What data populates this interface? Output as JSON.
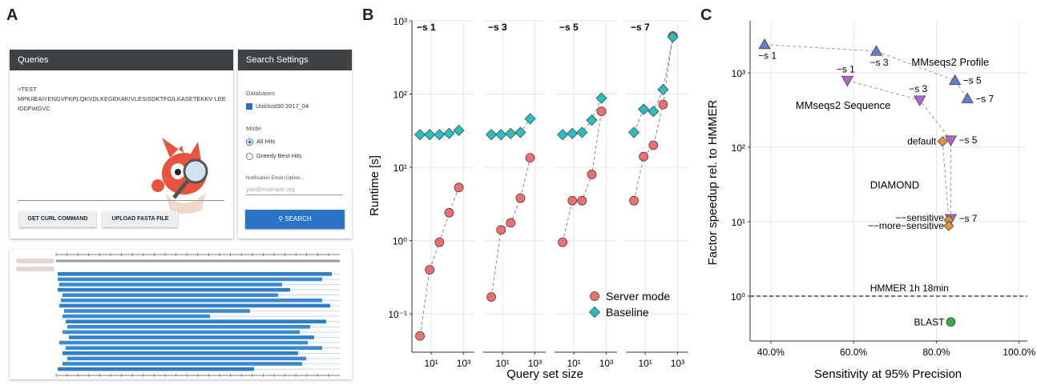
{
  "panels": {
    "a": "A",
    "b": "B",
    "c": "C"
  },
  "ui": {
    "queries_header": "Queries",
    "settings_header": "Search Settings",
    "query_name": ">TEST",
    "query_sequence": "MPKIIEAIYENGVFKPLQKVDLKEGEKAKIVLESISDKTFGILKASETEKKV LEEIDDFWGVC",
    "databases_label": "Databases",
    "database_option": "Uniclust30 2017_04",
    "mode_label": "Mode",
    "mode_options": [
      "All Hits",
      "Greedy Best Hits"
    ],
    "email_label": "Notification Email (Option...",
    "email_placeholder": "you@example.org",
    "curl_button": "GET CURL COMMAND",
    "upload_button": "UPLOAD FASTA FILE",
    "search_button": "SEARCH",
    "mascot": "mascot-illustration"
  },
  "chart_data": [
    {
      "type": "scatter",
      "panel": "B",
      "xlabel": "Query set size",
      "ylabel": "Runtime [s]",
      "yscale": "log",
      "xscale": "log",
      "ylim": [
        0.03,
        1000
      ],
      "ytick_labels": [
        "10⁻¹",
        "10⁰",
        "10¹",
        "10²",
        "10³"
      ],
      "xtick_labels": [
        "10¹",
        "10³"
      ],
      "legend": [
        "Server mode",
        "Baseline"
      ],
      "legend_position": "bottom-right",
      "colors": {
        "server": "#f06e6e",
        "baseline": "#27c0c0"
      },
      "facets": [
        {
          "label": "−s 1",
          "x": [
            2,
            8,
            32,
            128,
            512
          ],
          "server": [
            0.05,
            0.4,
            0.95,
            2.4,
            5.3
          ],
          "baseline": [
            28,
            28,
            28,
            29,
            32
          ]
        },
        {
          "label": "−s 3",
          "x": [
            2,
            8,
            32,
            128,
            512
          ],
          "server": [
            0.17,
            1.4,
            1.75,
            3.8,
            13.5
          ],
          "baseline": [
            28,
            28,
            29,
            30,
            46
          ]
        },
        {
          "label": "−s 5",
          "x": [
            2,
            8,
            32,
            128,
            512
          ],
          "server": [
            0.95,
            3.5,
            3.5,
            8,
            58
          ],
          "baseline": [
            28,
            29,
            30,
            44,
            88
          ]
        },
        {
          "label": "−s 7",
          "x": [
            2,
            8,
            32,
            128,
            512
          ],
          "server": [
            3.5,
            14,
            20,
            72,
            620
          ],
          "baseline": [
            30,
            62,
            58,
            115,
            600
          ]
        }
      ]
    },
    {
      "type": "scatter",
      "panel": "C",
      "xlabel": "Sensitivity at 95% Precision",
      "ylabel": "Factor speedup rel. to HMMER",
      "yscale": "log",
      "xlim": [
        35,
        102
      ],
      "ylim": [
        0.25,
        5000
      ],
      "xtick_labels": [
        "40.0%",
        "60.0%",
        "80.0%",
        "100.0%"
      ],
      "xticks": [
        40,
        60,
        80,
        100
      ],
      "ytick_labels": [
        "10⁰",
        "10¹",
        "10²",
        "10³"
      ],
      "reference_line": {
        "y": 1,
        "label": "HMMER 1h 18min"
      },
      "groups": [
        {
          "name": "MMseqs2 Profile",
          "marker": "triangle-up",
          "color": "#5f7fc8",
          "points": [
            {
              "x": 38.5,
              "y": 2400,
              "label": "−s 1"
            },
            {
              "x": 65.5,
              "y": 1950,
              "label": "−s 3"
            },
            {
              "x": 84.5,
              "y": 790,
              "label": "−s 5"
            },
            {
              "x": 87.5,
              "y": 450,
              "label": "−s 7"
            }
          ]
        },
        {
          "name": "MMseqs2 Sequence",
          "marker": "triangle-down",
          "color": "#b565c9",
          "points": [
            {
              "x": 58.5,
              "y": 790,
              "label": "−s 1"
            },
            {
              "x": 76,
              "y": 430,
              "label": "−s 3"
            },
            {
              "x": 83.5,
              "y": 125,
              "label": "−s 5"
            },
            {
              "x": 83.5,
              "y": 11,
              "label": "−s 7"
            }
          ]
        },
        {
          "name": "DIAMOND",
          "marker": "diamond",
          "color": "#e09435",
          "points": [
            {
              "x": 81.5,
              "y": 120,
              "label": "default"
            },
            {
              "x": 83,
              "y": 10.5,
              "label": "−−sensitive"
            },
            {
              "x": 83,
              "y": 8.8,
              "label": "−−more−sensitive"
            }
          ]
        },
        {
          "name": "BLAST",
          "marker": "circle",
          "color": "#3aa84a",
          "points": [
            {
              "x": 83.5,
              "y": 0.45,
              "label": "BLAST"
            }
          ]
        }
      ]
    }
  ]
}
